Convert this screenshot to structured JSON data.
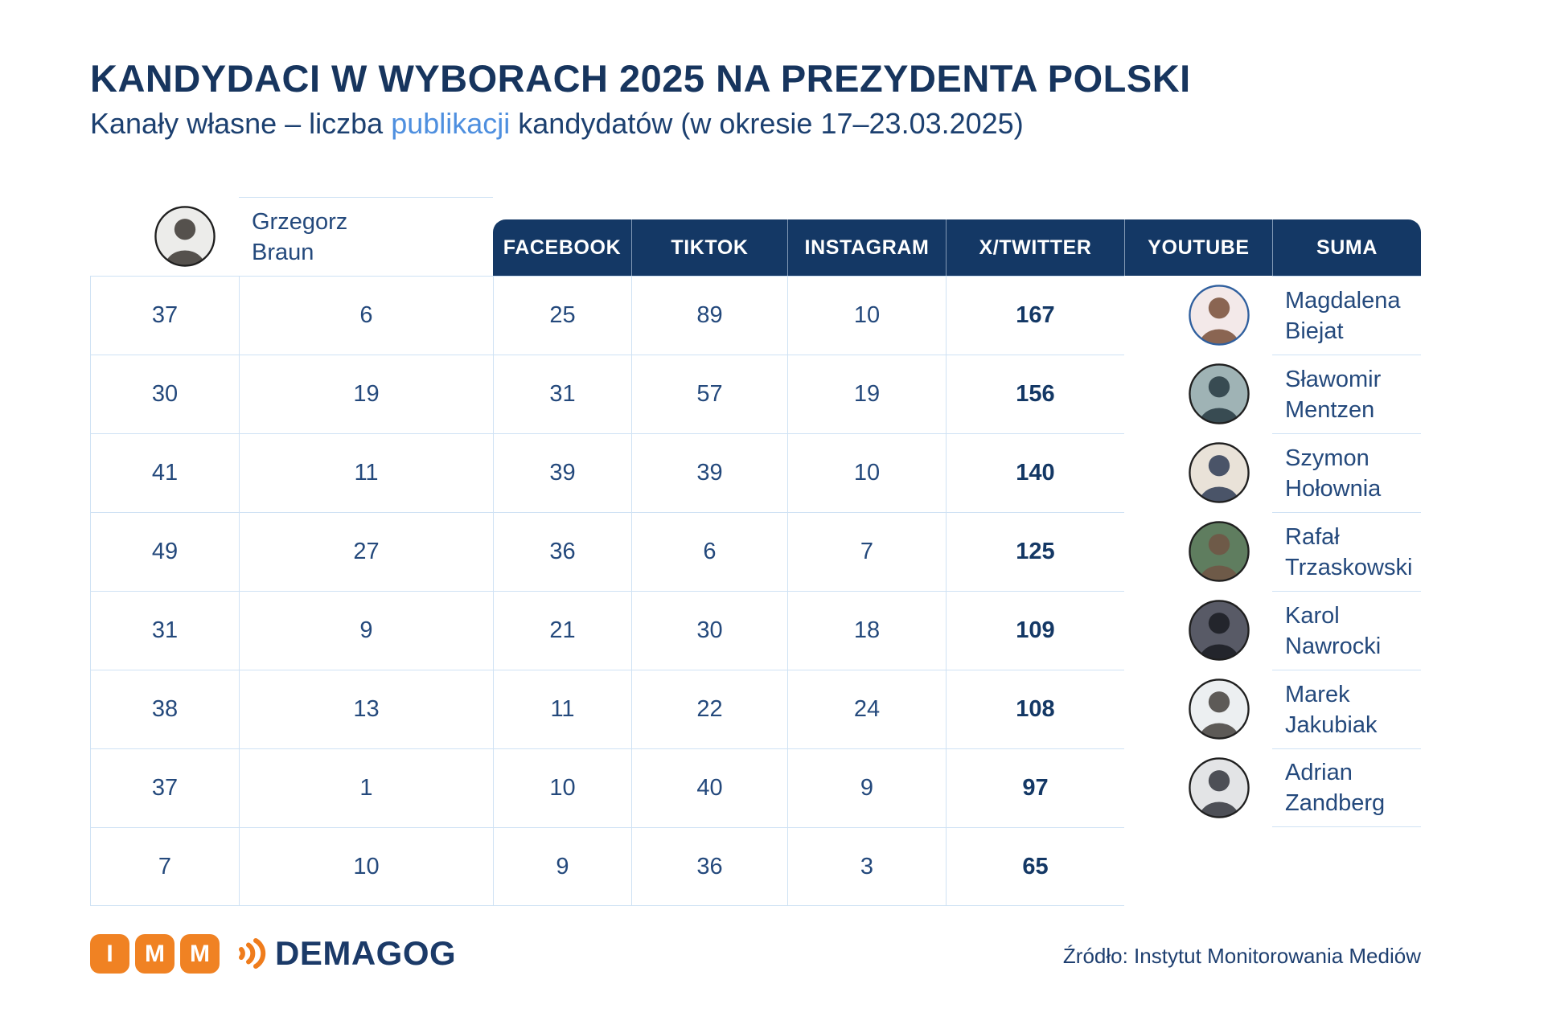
{
  "header": {
    "title": "KANDYDACI W WYBORACH 2025 NA PREZYDENTA POLSKI",
    "subtitle_prefix": "Kanały własne – liczba ",
    "subtitle_highlight": "publikacji",
    "subtitle_suffix": " kandydatów (w okresie 17–23.03.2025)"
  },
  "chart_data": {
    "type": "table",
    "title": "KANDYDACI W WYBORACH 2025 NA PREZYDENTA POLSKI",
    "subtitle": "Kanały własne – liczba publikacji kandydatów (w okresie 17–23.03.2025)",
    "columns": [
      "FACEBOOK",
      "TIKTOK",
      "INSTAGRAM",
      "X/TWITTER",
      "YOUTUBE",
      "SUMA"
    ],
    "rows": [
      {
        "name_lines": [
          "Grzegorz",
          "Braun"
        ],
        "values": [
          37,
          6,
          25,
          89,
          10
        ],
        "suma": 167
      },
      {
        "name_lines": [
          "Magdalena",
          "Biejat"
        ],
        "values": [
          30,
          19,
          31,
          57,
          19
        ],
        "suma": 156
      },
      {
        "name_lines": [
          "Sławomir",
          "Mentzen"
        ],
        "values": [
          41,
          11,
          39,
          39,
          10
        ],
        "suma": 140
      },
      {
        "name_lines": [
          "Szymon",
          "Hołownia"
        ],
        "values": [
          49,
          27,
          36,
          6,
          7
        ],
        "suma": 125
      },
      {
        "name_lines": [
          "Rafał",
          "Trzaskowski"
        ],
        "values": [
          31,
          9,
          21,
          30,
          18
        ],
        "suma": 109
      },
      {
        "name_lines": [
          "Karol",
          "Nawrocki"
        ],
        "values": [
          38,
          13,
          11,
          22,
          24
        ],
        "suma": 108
      },
      {
        "name_lines": [
          "Marek",
          "Jakubiak"
        ],
        "values": [
          37,
          1,
          10,
          40,
          9
        ],
        "suma": 97
      },
      {
        "name_lines": [
          "Adrian",
          "Zandberg"
        ],
        "values": [
          7,
          10,
          9,
          36,
          3
        ],
        "suma": 65
      }
    ],
    "source": "Źródło: Instytut Monitorowania Mediów"
  },
  "avatars": [
    {
      "person": "Grzegorz Braun",
      "bg": "#ececea",
      "fg": "#55514d",
      "border": "#1f1f1f"
    },
    {
      "person": "Magdalena Biejat",
      "bg": "#f3e9e9",
      "fg": "#8a6552",
      "border": "#2f5f9e"
    },
    {
      "person": "Sławomir Mentzen",
      "bg": "#9fb3b5",
      "fg": "#384b52",
      "border": "#1f1f1f"
    },
    {
      "person": "Szymon Hołownia",
      "bg": "#e9e2d8",
      "fg": "#4a5468",
      "border": "#1f1f1f"
    },
    {
      "person": "Rafał Trzaskowski",
      "bg": "#5f7d5f",
      "fg": "#6e5a48",
      "border": "#1f1f1f"
    },
    {
      "person": "Karol Nawrocki",
      "bg": "#585a66",
      "fg": "#23252c",
      "border": "#1f1f1f"
    },
    {
      "person": "Marek Jakubiak",
      "bg": "#eceff1",
      "fg": "#5d5a57",
      "border": "#1f1f1f"
    },
    {
      "person": "Adrian Zandberg",
      "bg": "#e3e4e6",
      "fg": "#4d4f56",
      "border": "#1f1f1f"
    }
  ],
  "footer": {
    "imm_letters": [
      "I",
      "M",
      "M"
    ],
    "demagog_label": "DEMAGOG",
    "source": "Źródło: Instytut Monitorowania Mediów"
  },
  "colors": {
    "header_bg": "#143865",
    "title_text": "#17355e",
    "body_text": "#24497c",
    "suma_text": "#143865",
    "highlight_blue": "#4e8fdf",
    "grid_line": "#cfe2f4",
    "logo_orange": "#f08223",
    "demagog_navy": "#1b3a68"
  }
}
